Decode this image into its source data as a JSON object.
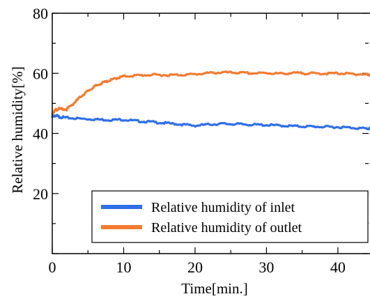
{
  "chart_data": {
    "type": "line",
    "title": "",
    "xlabel": "Time[min.]",
    "ylabel": "Relative humidity[%]",
    "xlim": [
      0,
      44.5
    ],
    "ylim": [
      0,
      80
    ],
    "x_ticks": [
      0,
      10,
      20,
      30,
      40
    ],
    "y_ticks": [
      20,
      40,
      60,
      80
    ],
    "grid": false,
    "legend_position": "bottom-right",
    "series": [
      {
        "name": "Relative humidity of inlet",
        "color": "#2F6FE8",
        "x": [
          0,
          0.5,
          1,
          2,
          4,
          6,
          8,
          10,
          12,
          14,
          16,
          18,
          20,
          22,
          24,
          26,
          28,
          30,
          32,
          34,
          36,
          38,
          40,
          42,
          44,
          44.5
        ],
        "y": [
          45.5,
          46.0,
          45.5,
          45.2,
          44.9,
          44.7,
          44.5,
          44.6,
          44.1,
          43.8,
          43.4,
          43.0,
          42.6,
          43.0,
          43.2,
          43.1,
          42.9,
          42.8,
          42.6,
          42.4,
          42.3,
          42.2,
          42.1,
          41.9,
          41.6,
          41.6
        ]
      },
      {
        "name": "Relative humidity of outlet",
        "color": "#F47B30",
        "x": [
          0,
          0.5,
          1,
          2,
          3,
          4,
          5,
          6,
          7,
          8,
          9,
          10,
          12,
          14,
          16,
          18,
          20,
          22,
          24,
          26,
          28,
          30,
          32,
          34,
          36,
          38,
          40,
          42,
          44,
          44.5
        ],
        "y": [
          46.8,
          47.8,
          48.2,
          48.0,
          50.0,
          52.3,
          54.1,
          55.7,
          56.8,
          57.6,
          58.4,
          59.0,
          59.3,
          59.5,
          59.4,
          59.5,
          59.7,
          60.1,
          60.3,
          60.2,
          60.0,
          60.1,
          59.9,
          60.1,
          60.0,
          59.9,
          60.0,
          59.8,
          59.6,
          59.6
        ]
      }
    ]
  }
}
